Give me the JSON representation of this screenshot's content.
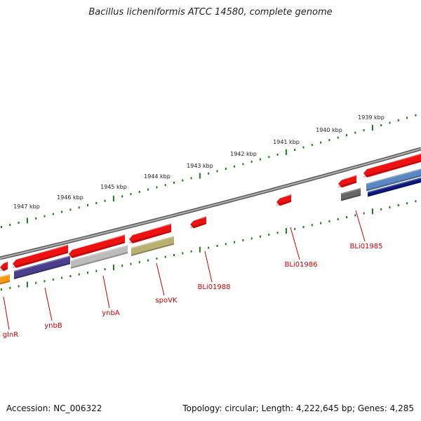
{
  "title": "Bacillus licheniformis ATCC 14580, complete genome",
  "footer": {
    "accession": "Accession: NC_006322",
    "summary": "Topology: circular; Length: 4,222,645 bp; Genes: 4,285"
  },
  "kbp_labels": [
    "1939 kbp",
    "1940 kbp",
    "1941 kbp",
    "1942 kbp",
    "1943 kbp",
    "1944 kbp",
    "1945 kbp",
    "1946 kbp",
    "1947 kbp"
  ],
  "gene_labels": [
    "BLi01985",
    "BLi01986",
    "BLi01988",
    "spoVK",
    "ynbA",
    "ynbB",
    "glnR"
  ],
  "colors": {
    "forward": "#ee1111",
    "backbone": "#888888",
    "ticks": "#1a7a1a",
    "label": "#cc0000",
    "ynbB": "#4a3f8c",
    "ynbA": "#bcbcbc",
    "spoVK": "#b8b070",
    "glnR": "#f59a10",
    "dark_gray": "#666666",
    "blue_light": "#5b86c0",
    "blue_dark": "#0a1a80"
  }
}
